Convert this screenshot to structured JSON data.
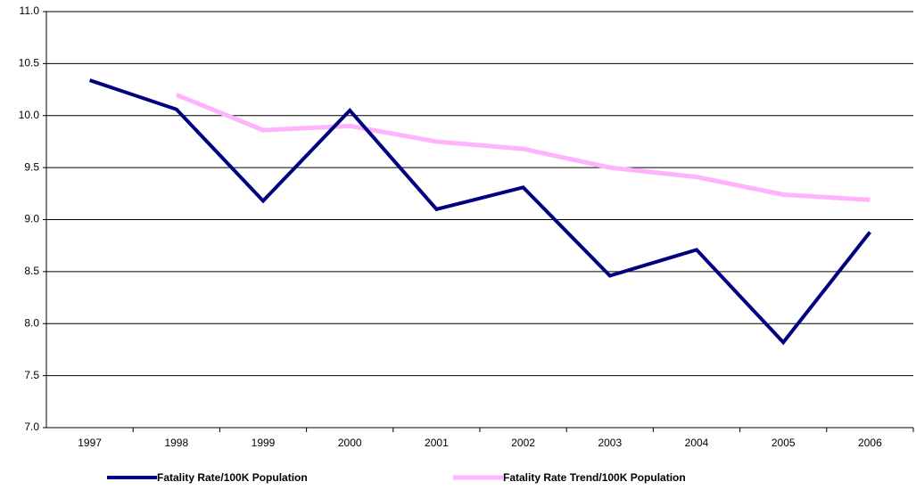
{
  "chart_data": {
    "type": "line",
    "categories": [
      "1997",
      "1998",
      "1999",
      "2000",
      "2001",
      "2002",
      "2003",
      "2004",
      "2005",
      "2006"
    ],
    "series": [
      {
        "name": "Fatality Rate/100K Population",
        "color": "#000080",
        "values": [
          10.34,
          10.06,
          9.18,
          10.05,
          9.1,
          9.31,
          8.46,
          8.71,
          7.82,
          8.88
        ]
      },
      {
        "name": "Fatality Rate Trend/100K Population",
        "color": "#ffb3ff",
        "values": [
          null,
          10.2,
          9.86,
          9.9,
          9.75,
          9.68,
          9.5,
          9.41,
          9.24,
          9.19
        ]
      }
    ],
    "ylim": [
      7,
      11
    ],
    "yticks": [
      {
        "value": 7,
        "label": "7.0"
      },
      7.5,
      {
        "value": 8,
        "label": "8.0"
      },
      8.5,
      {
        "value": 9,
        "label": "9.0"
      },
      9.5,
      {
        "value": 10,
        "label": "10.0"
      },
      10.5,
      {
        "value": 11,
        "label": "11.0"
      }
    ],
    "grid": true,
    "legend": "bottom"
  }
}
